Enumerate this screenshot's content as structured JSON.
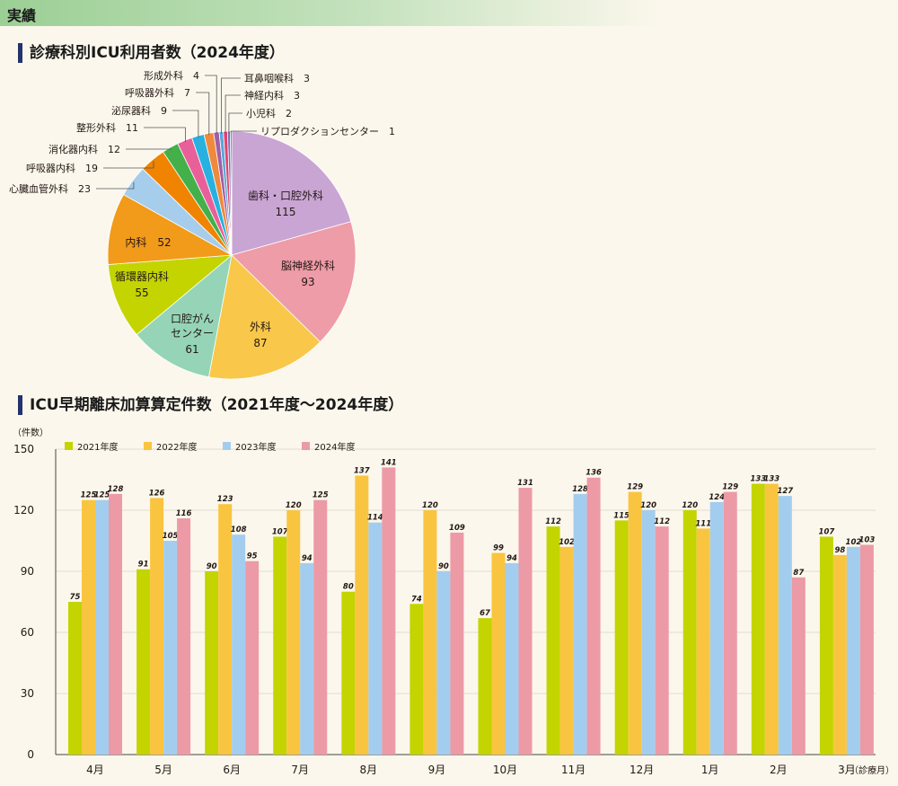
{
  "header": {
    "title": "実績"
  },
  "colors": {
    "bar_2021": "#c3d400",
    "bar_2022": "#f9c540",
    "bar_2023": "#a3cdee",
    "bar_2024": "#ec9aa6"
  },
  "chart_data": [
    {
      "type": "pie",
      "title": "診療科別ICU利用者数（2024年度）",
      "slices": [
        {
          "label": "歯科・口腔外科",
          "value": "115",
          "color": "#c9a5d4"
        },
        {
          "label": "脳神経外科",
          "value": "93",
          "color": "#ee9ca7"
        },
        {
          "label": "外科",
          "value": "87",
          "color": "#f9c84a"
        },
        {
          "label": "口腔がんセンター",
          "value": "61",
          "color": "#95d4b7"
        },
        {
          "label": "循環器内科",
          "value": "55",
          "color": "#c3d400"
        },
        {
          "label": "内科",
          "value": "52",
          "color": "#f29a1a"
        },
        {
          "label": "心臓血管外科",
          "value": "23",
          "color": "#a6cdec"
        },
        {
          "label": "呼吸器内科",
          "value": "19",
          "color": "#f08300"
        },
        {
          "label": "消化器内科",
          "value": "12",
          "color": "#43b04a"
        },
        {
          "label": "整形外科",
          "value": "11",
          "color": "#e8609a"
        },
        {
          "label": "泌尿器科",
          "value": "9",
          "color": "#27b1e0"
        },
        {
          "label": "呼吸器外科",
          "value": "7",
          "color": "#ef8a3c"
        },
        {
          "label": "形成外科",
          "value": "4",
          "color": "#a15ea5"
        },
        {
          "label": "耳鼻咽喉科",
          "value": "3",
          "color": "#5aa7d8"
        },
        {
          "label": "神経内科",
          "value": "3",
          "color": "#e04370"
        },
        {
          "label": "小児科",
          "value": "2",
          "color": "#7d6db3"
        },
        {
          "label": "リプロダクションセンター",
          "value": "1",
          "color": "#2c4b9c"
        }
      ]
    },
    {
      "type": "bar",
      "title": "ICU早期離床加算算定件数（2021年度～2024年度）",
      "ylabel": "（件数）",
      "xlabel": "（診療月）",
      "ylim": [
        0,
        150
      ],
      "yticks": [
        "0",
        "30",
        "60",
        "90",
        "120",
        "150"
      ],
      "legend_position": "top",
      "categories": [
        "4月",
        "5月",
        "6月",
        "7月",
        "8月",
        "9月",
        "10月",
        "11月",
        "12月",
        "1月",
        "2月",
        "3月"
      ],
      "series": [
        {
          "name": "2021年度",
          "values": [
            75,
            91,
            90,
            107,
            80,
            74,
            67,
            112,
            115,
            120,
            133,
            107
          ]
        },
        {
          "name": "2022年度",
          "values": [
            125,
            126,
            123,
            120,
            137,
            120,
            99,
            102,
            129,
            111,
            133,
            98
          ]
        },
        {
          "name": "2023年度",
          "values": [
            125,
            105,
            108,
            94,
            114,
            90,
            94,
            128,
            120,
            124,
            127,
            102
          ]
        },
        {
          "name": "2024年度",
          "values": [
            128,
            116,
            95,
            125,
            141,
            109,
            131,
            136,
            112,
            129,
            87,
            103
          ]
        }
      ]
    }
  ]
}
